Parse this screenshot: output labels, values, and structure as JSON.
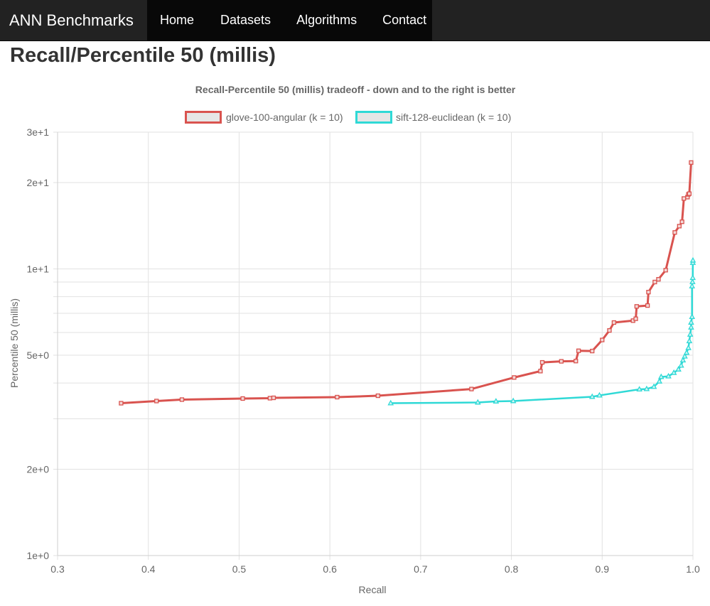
{
  "nav": {
    "brand": "ANN Benchmarks",
    "links": [
      {
        "label": "Home"
      },
      {
        "label": "Datasets"
      },
      {
        "label": "Algorithms"
      },
      {
        "label": "Contact"
      }
    ]
  },
  "page": {
    "title": "Recall/Percentile 50 (millis)"
  },
  "chart_data": {
    "type": "line",
    "title": "Recall-Percentile 50 (millis) tradeoff - down and to the right is better",
    "xlabel": "Recall",
    "ylabel": "Percentile 50 (millis)",
    "xlim": [
      0.3,
      1.0
    ],
    "ylim": [
      1,
      30
    ],
    "yscale": "log",
    "xticks": [
      0.3,
      0.4,
      0.5,
      0.6,
      0.7,
      0.8,
      0.9,
      1.0
    ],
    "xtick_labels": [
      "0.3",
      "0.4",
      "0.5",
      "0.6",
      "0.7",
      "0.8",
      "0.9",
      "1.0"
    ],
    "yticks": [
      1,
      2,
      5,
      10,
      20,
      30
    ],
    "ytick_labels": [
      "1e+0",
      "2e+0",
      "5e+0",
      "1e+1",
      "2e+1",
      "3e+1"
    ],
    "grid": true,
    "legend_position": "top",
    "series": [
      {
        "name": "glove-100-angular (k = 10)",
        "color": "#d9534f",
        "marker": "square",
        "x": [
          0.37,
          0.409,
          0.437,
          0.504,
          0.534,
          0.538,
          0.608,
          0.653,
          0.756,
          0.803,
          0.832,
          0.834,
          0.855,
          0.871,
          0.874,
          0.889,
          0.9,
          0.908,
          0.913,
          0.934,
          0.937,
          0.938,
          0.95,
          0.951,
          0.958,
          0.962,
          0.97,
          0.98,
          0.985,
          0.988,
          0.99,
          0.994,
          0.995,
          0.996,
          0.998
        ],
        "y": [
          3.4,
          3.46,
          3.5,
          3.53,
          3.54,
          3.55,
          3.57,
          3.61,
          3.81,
          4.18,
          4.4,
          4.72,
          4.76,
          4.77,
          5.18,
          5.17,
          5.65,
          6.1,
          6.5,
          6.6,
          6.7,
          7.4,
          7.45,
          8.3,
          9.0,
          9.2,
          9.9,
          13.4,
          14.1,
          14.6,
          17.6,
          17.8,
          18.2,
          18.3,
          23.5
        ]
      },
      {
        "name": "sift-128-euclidean (k = 10)",
        "color": "#2fd9d6",
        "marker": "triangle",
        "x": [
          0.667,
          0.763,
          0.783,
          0.802,
          0.889,
          0.897,
          0.941,
          0.949,
          0.957,
          0.963,
          0.965,
          0.973,
          0.979,
          0.984,
          0.987,
          0.989,
          0.991,
          0.993,
          0.995,
          0.996,
          0.997,
          0.998,
          0.998,
          0.999,
          0.999,
          0.9995,
          0.9998,
          0.9999,
          1.0
        ],
        "y": [
          3.4,
          3.42,
          3.45,
          3.46,
          3.58,
          3.62,
          3.8,
          3.81,
          3.88,
          4.05,
          4.2,
          4.22,
          4.34,
          4.46,
          4.6,
          4.8,
          4.95,
          5.1,
          5.3,
          5.6,
          5.9,
          6.25,
          6.5,
          6.8,
          8.7,
          9.0,
          9.3,
          10.5,
          10.7
        ]
      }
    ]
  }
}
